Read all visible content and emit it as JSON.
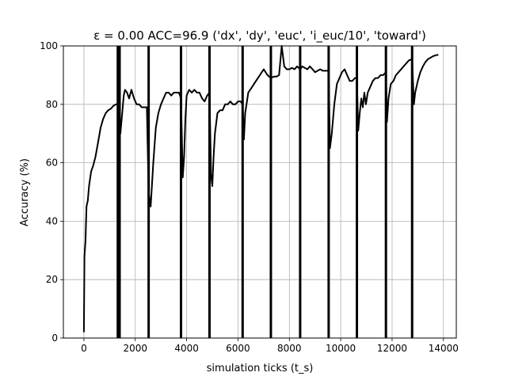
{
  "chart_data": {
    "type": "line",
    "title": "ε = 0.00 ACC=96.9 ('dx', 'dy', 'euc', 'i_euc/10', 'toward')",
    "xlabel": "simulation ticks (t_s)",
    "ylabel": "Accuracy (%)",
    "xlim": [
      -800,
      14500
    ],
    "ylim": [
      0,
      100
    ],
    "xticks": [
      0,
      2000,
      4000,
      6000,
      8000,
      10000,
      12000,
      14000
    ],
    "yticks": [
      0,
      20,
      40,
      60,
      80,
      100
    ],
    "grid": true,
    "series": [
      {
        "color": "#000000",
        "x": [
          0,
          20,
          60,
          100,
          150,
          200,
          280,
          360,
          450,
          550,
          650,
          750,
          850,
          950,
          1050,
          1150,
          1250,
          1320,
          1370,
          1420,
          1500,
          1550,
          1600,
          1680,
          1760,
          1850,
          1950,
          2050,
          2150,
          2250,
          2350,
          2450,
          2520,
          2600,
          2700,
          2800,
          2900,
          3000,
          3100,
          3200,
          3300,
          3400,
          3500,
          3600,
          3700,
          3780,
          3850,
          3900,
          3950,
          4000,
          4100,
          4200,
          4300,
          4400,
          4500,
          4600,
          4700,
          4800,
          4890,
          4950,
          5000,
          5050,
          5100,
          5200,
          5300,
          5400,
          5500,
          5600,
          5700,
          5800,
          5900,
          6000,
          6100,
          6180,
          6230,
          6280,
          6400,
          6550,
          6700,
          6850,
          7000,
          7150,
          7280,
          7400,
          7500,
          7600,
          7700,
          7800,
          7900,
          8000,
          8100,
          8200,
          8300,
          8420,
          8500,
          8600,
          8700,
          8800,
          8900,
          9000,
          9100,
          9200,
          9300,
          9400,
          9530,
          9580,
          9650,
          9750,
          9850,
          9950,
          10050,
          10150,
          10250,
          10350,
          10450,
          10550,
          10630,
          10680,
          10740,
          10800,
          10860,
          10920,
          10980,
          11050,
          11150,
          11250,
          11350,
          11450,
          11550,
          11650,
          11760,
          11800,
          11860,
          11950,
          12050,
          12150,
          12250,
          12350,
          12450,
          12550,
          12650,
          12780,
          12850,
          12900,
          13000,
          13100,
          13200,
          13300,
          13400,
          13500,
          13600,
          13700,
          13800
        ],
        "y": [
          2,
          28,
          33,
          45,
          47,
          52,
          57,
          59,
          62,
          67,
          72,
          75,
          77,
          78,
          78.5,
          79.5,
          80,
          80,
          72,
          70,
          78,
          83,
          85,
          84,
          82,
          85,
          82,
          80,
          80,
          79,
          79,
          79,
          50,
          45,
          60,
          72,
          77,
          80,
          82,
          84,
          84,
          83,
          84,
          84,
          84,
          82,
          55,
          62,
          75,
          83,
          85,
          84,
          85,
          84,
          84,
          82,
          81,
          83,
          84,
          56,
          52,
          62,
          70,
          77,
          78,
          78,
          80,
          80,
          81,
          80,
          80,
          81,
          81,
          80,
          68,
          77,
          84,
          86,
          88,
          90,
          92,
          90,
          89,
          89.5,
          89.5,
          90,
          100,
          93,
          92,
          92,
          92.5,
          92,
          93,
          92,
          93,
          92.5,
          92,
          93,
          92,
          91,
          91.5,
          92,
          91.5,
          91.5,
          91.5,
          65,
          70,
          80,
          87,
          89,
          91,
          92,
          90,
          88,
          88,
          89,
          89,
          71,
          77,
          82,
          79,
          84,
          80,
          84,
          86,
          88,
          89,
          89,
          90,
          90,
          91,
          74,
          82,
          87,
          88,
          90,
          91,
          92,
          93,
          94,
          95,
          95.5,
          80,
          84,
          88,
          91,
          93,
          94.5,
          95.5,
          96,
          96.5,
          96.8,
          97
        ]
      }
    ],
    "vlines": [
      1320,
      1390,
      2520,
      3780,
      4890,
      6180,
      7280,
      8420,
      9530,
      10630,
      11760,
      12780
    ]
  }
}
